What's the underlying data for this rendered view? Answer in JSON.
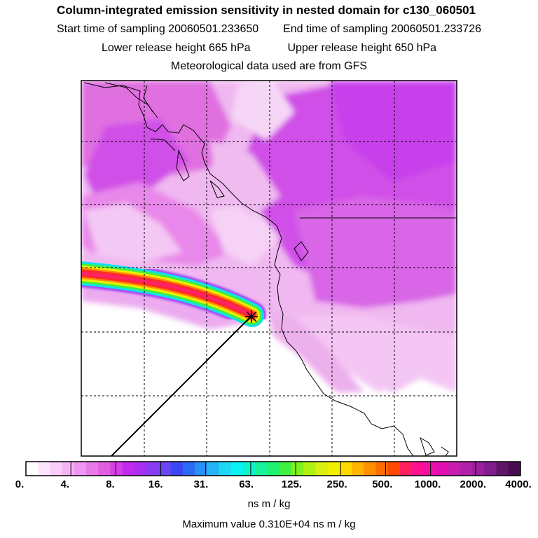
{
  "header": {
    "title": "Column-integrated emission sensitivity in nested domain for c130_060501",
    "start_label": "Start time of sampling 20060501.233650",
    "end_label": "End time of sampling 20060501.233726",
    "lower_label": "Lower release height  665 hPa",
    "upper_label": "Upper release height  650 hPa",
    "met_label": "Meteorological data used are from GFS"
  },
  "colorbar": {
    "tick_labels": [
      "0.",
      "4.",
      "8.",
      "16.",
      "31.",
      "63.",
      "125.",
      "250.",
      "500.",
      "1000.",
      "2000.",
      "4000."
    ],
    "units": "ns m / kg",
    "colors": [
      "#ffffff",
      "#fde6fd",
      "#f9ccf9",
      "#f5b3f5",
      "#ef95ef",
      "#e87ae8",
      "#e05ee0",
      "#d63fe6",
      "#c22bed",
      "#a82ef0",
      "#8a3cf2",
      "#6a46f4",
      "#3c46f5",
      "#2a6af5",
      "#2890f5",
      "#24b4f5",
      "#1ed8f5",
      "#0af2f2",
      "#10f2c8",
      "#18f29a",
      "#20f070",
      "#40f040",
      "#80f020",
      "#b0f010",
      "#d8f010",
      "#f0f000",
      "#ffd800",
      "#ffb400",
      "#ff9000",
      "#ff6c00",
      "#ff4800",
      "#ff2060",
      "#ff1090",
      "#f010a8",
      "#e010b0",
      "#c81cb0",
      "#b020a8",
      "#98209c",
      "#801c8c",
      "#601468",
      "#480c50"
    ]
  },
  "max_value": "Maximum value  0.310E+04 ns m / kg",
  "map": {
    "release_marker": "release-location-cross"
  }
}
